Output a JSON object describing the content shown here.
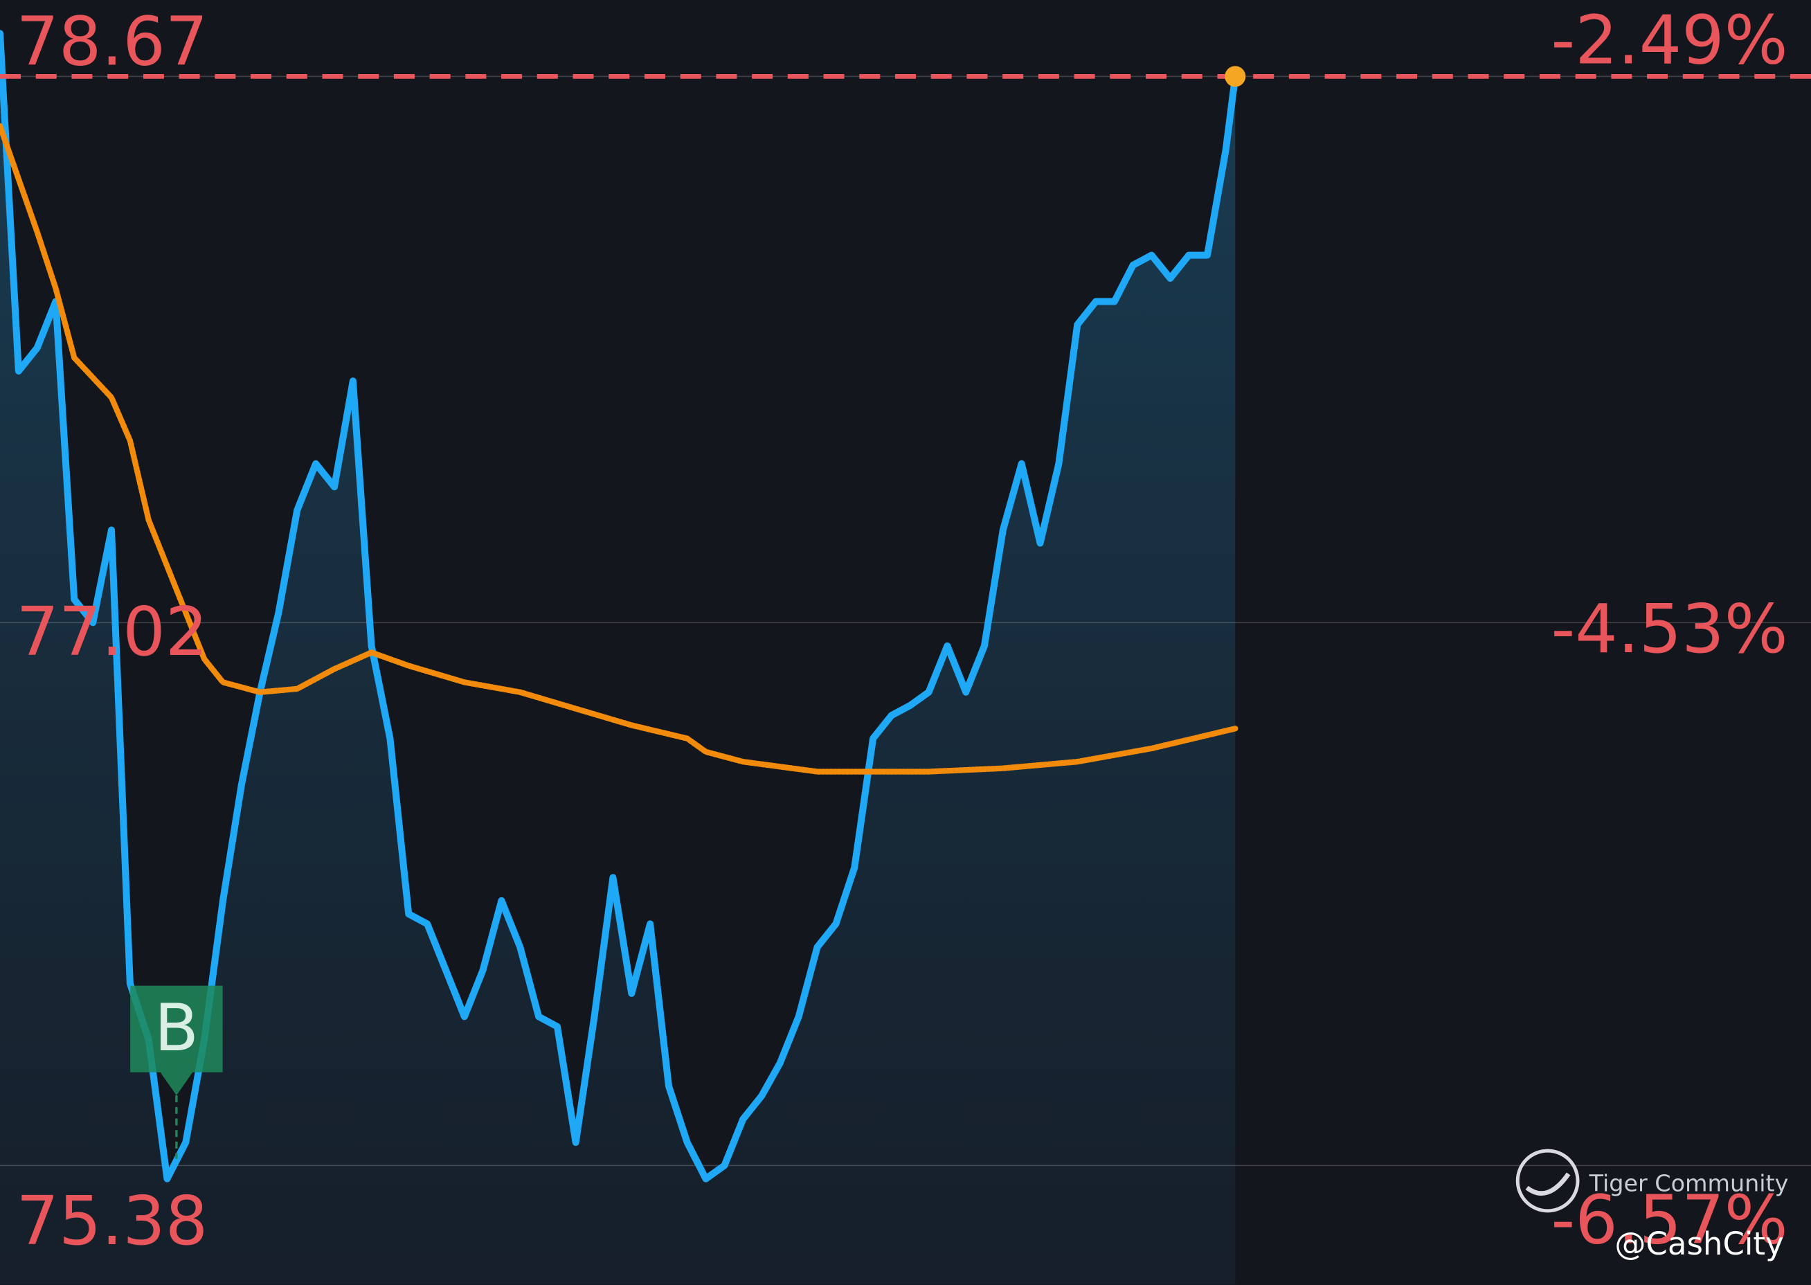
{
  "chart_data": {
    "type": "line",
    "xlim": [
      0,
      390
    ],
    "ylim": [
      75.02,
      78.9
    ],
    "yticks": [
      78.67,
      77.02,
      75.38
    ],
    "y2lim": [
      -7.02,
      -2.21
    ],
    "y2ticks": [
      {
        "value": -2.49,
        "label": "-2.49%"
      },
      {
        "value": -4.53,
        "label": "-4.53%"
      },
      {
        "value": -6.57,
        "label": "-6.57%"
      }
    ],
    "grid": true,
    "series": [
      {
        "color": "#1fa8f5",
        "fill": true,
        "x": [
          0,
          4,
          8,
          12,
          16,
          20,
          24,
          28,
          32,
          36,
          40,
          44,
          48,
          52,
          56,
          60,
          64,
          68,
          72,
          76,
          80,
          84,
          88,
          92,
          96,
          100,
          104,
          108,
          112,
          116,
          120,
          124,
          128,
          132,
          136,
          140,
          144,
          148,
          152,
          156,
          160,
          164,
          168,
          172,
          176,
          180,
          184,
          188,
          192,
          196,
          200,
          204,
          208,
          212,
          216,
          220,
          224,
          228,
          232,
          236,
          240,
          244,
          248,
          252,
          256,
          260,
          264,
          266
        ],
        "values": [
          78.8,
          77.78,
          77.85,
          77.99,
          77.09,
          77.02,
          77.3,
          75.93,
          75.76,
          75.34,
          75.45,
          75.76,
          76.18,
          76.53,
          76.81,
          77.05,
          77.36,
          77.5,
          77.43,
          77.75,
          76.95,
          76.67,
          76.14,
          76.11,
          75.97,
          75.83,
          75.97,
          76.18,
          76.04,
          75.83,
          75.8,
          75.45,
          75.83,
          76.25,
          75.9,
          76.11,
          75.62,
          75.45,
          75.34,
          75.38,
          75.52,
          75.59,
          75.69,
          75.83,
          76.04,
          76.11,
          76.28,
          76.67,
          76.74,
          76.77,
          76.81,
          76.95,
          76.81,
          76.95,
          77.3,
          77.5,
          77.26,
          77.5,
          77.92,
          77.99,
          77.99,
          78.1,
          78.13,
          78.06,
          78.13,
          78.13,
          78.45,
          78.67
        ]
      },
      {
        "color": "#f28a0c",
        "style": "dotted",
        "x": [
          0,
          8,
          12,
          16,
          24,
          28,
          32,
          40,
          44,
          48,
          56,
          64,
          72,
          80,
          88,
          100,
          112,
          124,
          136,
          148,
          152,
          160,
          176,
          188,
          200,
          216,
          232,
          248,
          266
        ],
        "values": [
          78.52,
          78.2,
          78.03,
          77.82,
          77.7,
          77.57,
          77.33,
          77.05,
          76.91,
          76.84,
          76.81,
          76.82,
          76.88,
          76.93,
          76.89,
          76.84,
          76.81,
          76.76,
          76.71,
          76.67,
          76.63,
          76.6,
          76.57,
          76.57,
          76.57,
          76.58,
          76.6,
          76.64,
          76.7
        ]
      }
    ],
    "annotations": [
      {
        "text": "B",
        "x": 38,
        "y": 75.4,
        "color": "#1f8a5c"
      }
    ],
    "watermark": {
      "brand": "Tiger Community",
      "user": "@CashCity"
    }
  }
}
